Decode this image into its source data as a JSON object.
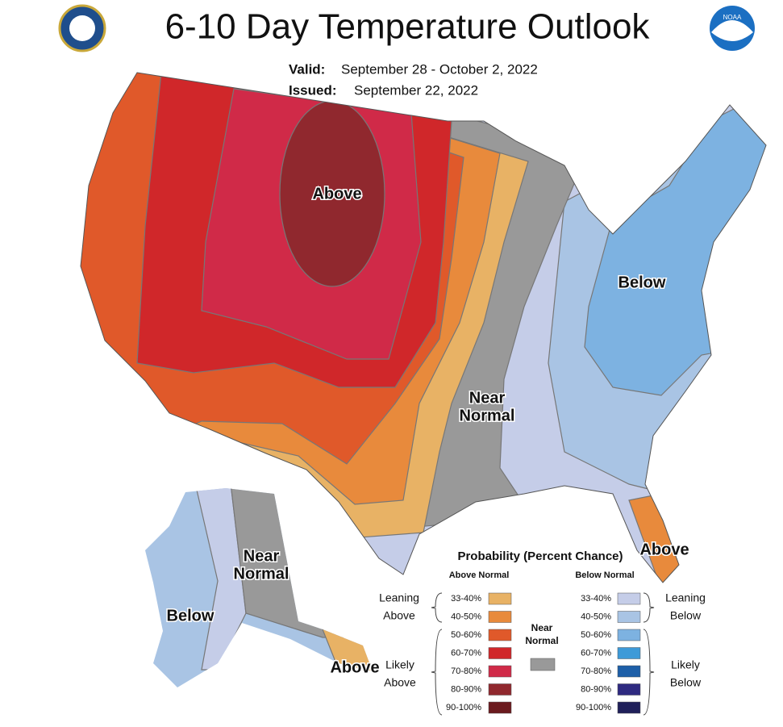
{
  "header": {
    "title": "6-10 Day Temperature Outlook",
    "valid_label": "Valid:",
    "valid": "September 28 - October 2, 2022",
    "issued_label": "Issued:",
    "issued": "September 22, 2022",
    "noaa_logo": "NOAA"
  },
  "map_labels": {
    "conus_above": "Above",
    "conus_below": "Below",
    "conus_near": [
      "Near",
      "Normal"
    ],
    "florida_above": "Above",
    "alaska_below": "Below",
    "alaska_near": [
      "Near",
      "Normal"
    ],
    "alaska_above": "Above"
  },
  "legend": {
    "title": "Probability (Percent Chance)",
    "above_header": "Above Normal",
    "below_header": "Below Normal",
    "above": [
      {
        "range": "33-40%",
        "color": "#e8b265"
      },
      {
        "range": "40-50%",
        "color": "#e88a3c"
      },
      {
        "range": "50-60%",
        "color": "#e0592a"
      },
      {
        "range": "60-70%",
        "color": "#d0272a"
      },
      {
        "range": "70-80%",
        "color": "#d02a48"
      },
      {
        "range": "80-90%",
        "color": "#90282e"
      },
      {
        "range": "90-100%",
        "color": "#6b1a1e"
      }
    ],
    "below": [
      {
        "range": "33-40%",
        "color": "#c5cde8"
      },
      {
        "range": "40-50%",
        "color": "#a9c4e4"
      },
      {
        "range": "50-60%",
        "color": "#7db2e1"
      },
      {
        "range": "60-70%",
        "color": "#3d9ad8"
      },
      {
        "range": "70-80%",
        "color": "#1d5fa8"
      },
      {
        "range": "80-90%",
        "color": "#2e2a80"
      },
      {
        "range": "90-100%",
        "color": "#20205a"
      }
    ],
    "near": {
      "label": [
        "Near",
        "Normal"
      ],
      "color": "#999999"
    },
    "leaning_above": [
      "Leaning",
      "Above"
    ],
    "likely_above": [
      "Likely",
      "Above"
    ],
    "leaning_below": [
      "Leaning",
      "Below"
    ],
    "likely_below": [
      "Likely",
      "Below"
    ]
  }
}
